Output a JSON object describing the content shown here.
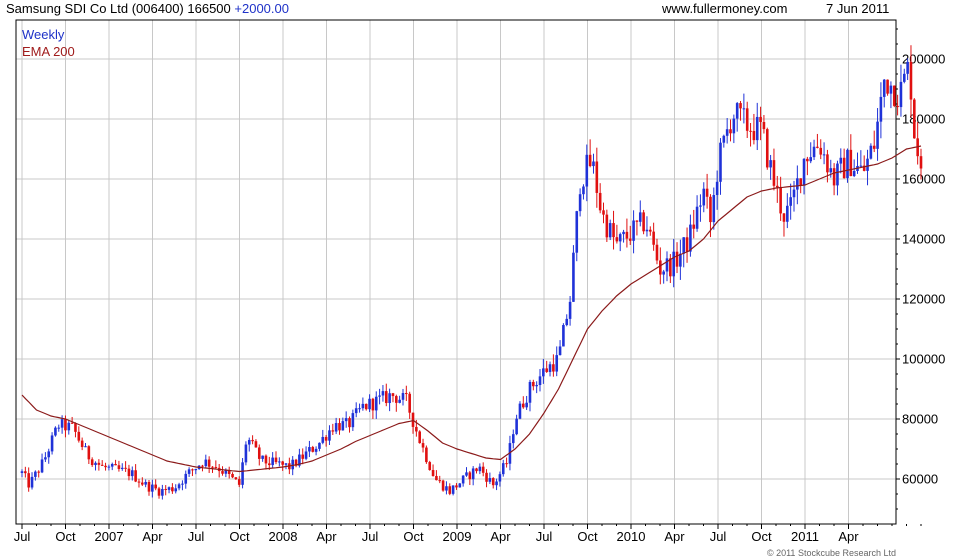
{
  "header": {
    "title": "Samsung SDI Co Ltd (006400) 166500",
    "change": "+2000.00",
    "site": "www.fullermoney.com",
    "date": "7 Jun 2011"
  },
  "legend": {
    "weekly": "Weekly",
    "ema": "EMA 200"
  },
  "copyright": "© 2011 Stockcube Research Ltd",
  "colors": {
    "up": "#1f32d8",
    "down": "#e01010",
    "ema": "#8b1a1a",
    "grid": "#c8c8c8",
    "legend_weekly": "#1f32c8",
    "legend_ema": "#a01c1c"
  },
  "chart_data": {
    "type": "candlestick",
    "title": "Samsung SDI Co Ltd (006400) 166500",
    "frequency": "Weekly",
    "ylim": [
      45000,
      213000
    ],
    "y_ticks": [
      60000,
      80000,
      100000,
      120000,
      140000,
      160000,
      180000,
      200000
    ],
    "y_tick_labels": [
      "60000",
      "80000",
      "100000",
      "120000",
      "140000",
      "160000",
      "180000",
      "200000"
    ],
    "x_ticks": [
      "Jul",
      "Oct",
      "2007",
      "Apr",
      "Jul",
      "Oct",
      "2008",
      "Apr",
      "Jul",
      "Oct",
      "2009",
      "Apr",
      "Jul",
      "Oct",
      "2010",
      "Apr",
      "Jul",
      "Oct",
      "2011",
      "Apr"
    ],
    "x_tick_months": [
      0,
      3,
      6,
      9,
      12,
      15,
      18,
      21,
      24,
      27,
      30,
      33,
      36,
      39,
      42,
      45,
      48,
      51,
      54,
      57
    ],
    "x_start": "Jul 2006",
    "grid": true,
    "price_path": [
      [
        0,
        62000
      ],
      [
        0.5,
        58000
      ],
      [
        1.5,
        66000
      ],
      [
        2.5,
        78000
      ],
      [
        3.5,
        77000
      ],
      [
        4.5,
        68000
      ],
      [
        5.5,
        64000
      ],
      [
        6.5,
        63000
      ],
      [
        7.5,
        62000
      ],
      [
        8.5,
        58000
      ],
      [
        9.5,
        56000
      ],
      [
        10.5,
        57000
      ],
      [
        11.5,
        62000
      ],
      [
        12.5,
        66000
      ],
      [
        13.5,
        64000
      ],
      [
        14.5,
        60000
      ],
      [
        15,
        58000
      ],
      [
        15.5,
        74000
      ],
      [
        16.5,
        66000
      ],
      [
        17.5,
        65000
      ],
      [
        18.5,
        64000
      ],
      [
        19.5,
        68000
      ],
      [
        20.5,
        72000
      ],
      [
        21.5,
        78000
      ],
      [
        22.5,
        78000
      ],
      [
        23.5,
        84000
      ],
      [
        24.5,
        86000
      ],
      [
        25.5,
        88000
      ],
      [
        26.5,
        86000
      ],
      [
        27.5,
        72000
      ],
      [
        28.5,
        60000
      ],
      [
        29.5,
        56000
      ],
      [
        30.5,
        60000
      ],
      [
        31.5,
        64000
      ],
      [
        32.5,
        58000
      ],
      [
        33.5,
        66000
      ],
      [
        34,
        80000
      ],
      [
        35,
        90000
      ],
      [
        36,
        96000
      ],
      [
        37,
        100000
      ],
      [
        37.8,
        120000
      ],
      [
        38.5,
        160000
      ],
      [
        39.3,
        166000
      ],
      [
        40,
        148000
      ],
      [
        41,
        138000
      ],
      [
        42,
        142000
      ],
      [
        43,
        146000
      ],
      [
        44,
        130000
      ],
      [
        45,
        132000
      ],
      [
        46,
        140000
      ],
      [
        47,
        156000
      ],
      [
        47.5,
        145000
      ],
      [
        48,
        165000
      ],
      [
        49,
        182000
      ],
      [
        50,
        178000
      ],
      [
        51,
        176000
      ],
      [
        51.8,
        160000
      ],
      [
        52.5,
        148000
      ],
      [
        53,
        150000
      ],
      [
        54,
        168000
      ],
      [
        55,
        172000
      ],
      [
        56,
        160000
      ],
      [
        57,
        166000
      ],
      [
        58,
        162000
      ],
      [
        58.8,
        172000
      ],
      [
        59.5,
        194000
      ],
      [
        60.5,
        188000
      ],
      [
        61.2,
        198000
      ],
      [
        61.6,
        172000
      ],
      [
        62,
        166500
      ]
    ],
    "ema_200": [
      [
        0,
        88000
      ],
      [
        1,
        83000
      ],
      [
        2,
        81000
      ],
      [
        3,
        80000
      ],
      [
        4,
        78000
      ],
      [
        5,
        76000
      ],
      [
        6,
        74000
      ],
      [
        7,
        72000
      ],
      [
        8,
        70000
      ],
      [
        9,
        68000
      ],
      [
        10,
        66000
      ],
      [
        11,
        65000
      ],
      [
        12,
        64000
      ],
      [
        13,
        63500
      ],
      [
        14,
        63000
      ],
      [
        15,
        62500
      ],
      [
        16,
        63000
      ],
      [
        17,
        63500
      ],
      [
        18,
        64000
      ],
      [
        19,
        64800
      ],
      [
        20,
        66000
      ],
      [
        21,
        68000
      ],
      [
        22,
        70000
      ],
      [
        23,
        72500
      ],
      [
        24,
        74500
      ],
      [
        25,
        76500
      ],
      [
        26,
        78500
      ],
      [
        27,
        79500
      ],
      [
        28,
        76000
      ],
      [
        29,
        72000
      ],
      [
        30,
        70000
      ],
      [
        31,
        68500
      ],
      [
        32,
        67000
      ],
      [
        33,
        66500
      ],
      [
        34,
        70000
      ],
      [
        35,
        75000
      ],
      [
        36,
        82000
      ],
      [
        37,
        90000
      ],
      [
        38,
        100000
      ],
      [
        39,
        110000
      ],
      [
        40,
        116000
      ],
      [
        41,
        121000
      ],
      [
        42,
        125000
      ],
      [
        43,
        128000
      ],
      [
        44,
        131000
      ],
      [
        45,
        134000
      ],
      [
        46,
        136000
      ],
      [
        47,
        140000
      ],
      [
        48,
        146000
      ],
      [
        49,
        150000
      ],
      [
        50,
        154000
      ],
      [
        51,
        156000
      ],
      [
        52,
        157000
      ],
      [
        53,
        157500
      ],
      [
        54,
        158000
      ],
      [
        55,
        160000
      ],
      [
        56,
        162000
      ],
      [
        57,
        163000
      ],
      [
        58,
        164000
      ],
      [
        59,
        165000
      ],
      [
        60,
        167000
      ],
      [
        61,
        170000
      ],
      [
        62,
        171000
      ]
    ]
  }
}
